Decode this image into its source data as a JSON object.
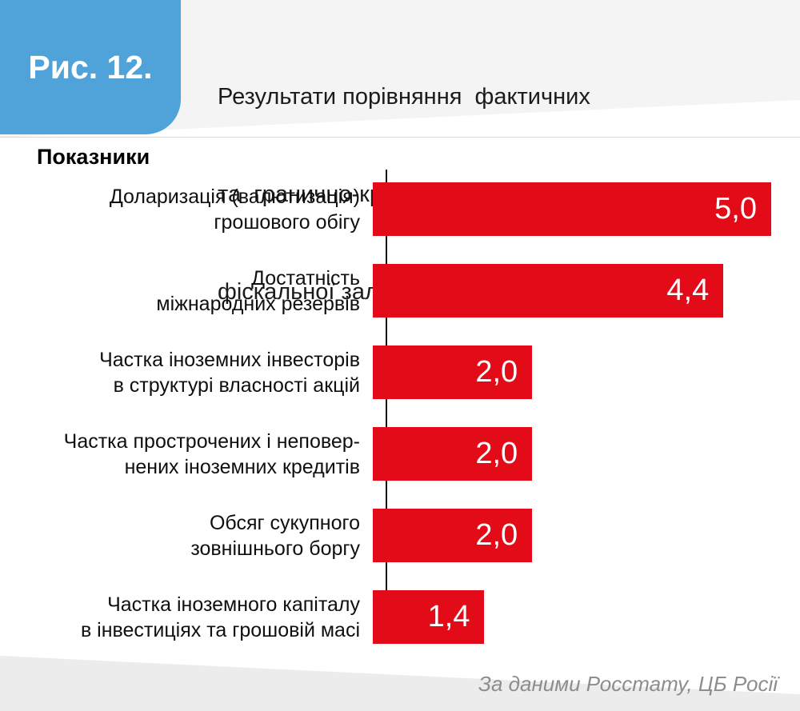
{
  "figure": {
    "label": "Рис. 12."
  },
  "header": {
    "title_lines": [
      "Результати порівняння  фактичних",
      "та  гранично-критичних значень  показників",
      "фіскальної залежності Росії, разів гірше"
    ]
  },
  "chart_data": {
    "type": "bar",
    "orientation": "horizontal",
    "title": "Результати порівняння фактичних та гранично-критичних значень показників фіскальної залежності Росії, разів гірше",
    "axis_header": "Показники",
    "categories": [
      [
        "Доларизація (валютизація)",
        "грошового обігу"
      ],
      [
        "Достатність",
        "міжнародних резервів"
      ],
      [
        "Частка іноземних інвесторів",
        "в структурі власності акцій"
      ],
      [
        "Частка прострочених і неповер-",
        "нених іноземних кредитів"
      ],
      [
        "Обсяг сукупного",
        "зовнішнього боргу"
      ],
      [
        "Частка іноземного капіталу",
        "в інвестиціях та грошовій масі"
      ]
    ],
    "values": [
      5.0,
      4.4,
      2.0,
      2.0,
      2.0,
      1.4
    ],
    "value_labels": [
      "5,0",
      "4,4",
      "2,0",
      "2,0",
      "2,0",
      "1,4"
    ],
    "xlim": [
      0,
      5.0
    ],
    "grid": false,
    "legend": false,
    "bar_color": "#e30b17",
    "value_label_color": "#ffffff"
  },
  "footer": {
    "source": "За даними Росстату, ЦБ Росії"
  },
  "colors": {
    "badge_bg": "#4fa3d9",
    "badge_text": "#ffffff",
    "bar": "#e30b17",
    "axis_line": "#111111",
    "source_text": "#8d8d8d",
    "decor_band": "#f0f0f0"
  }
}
